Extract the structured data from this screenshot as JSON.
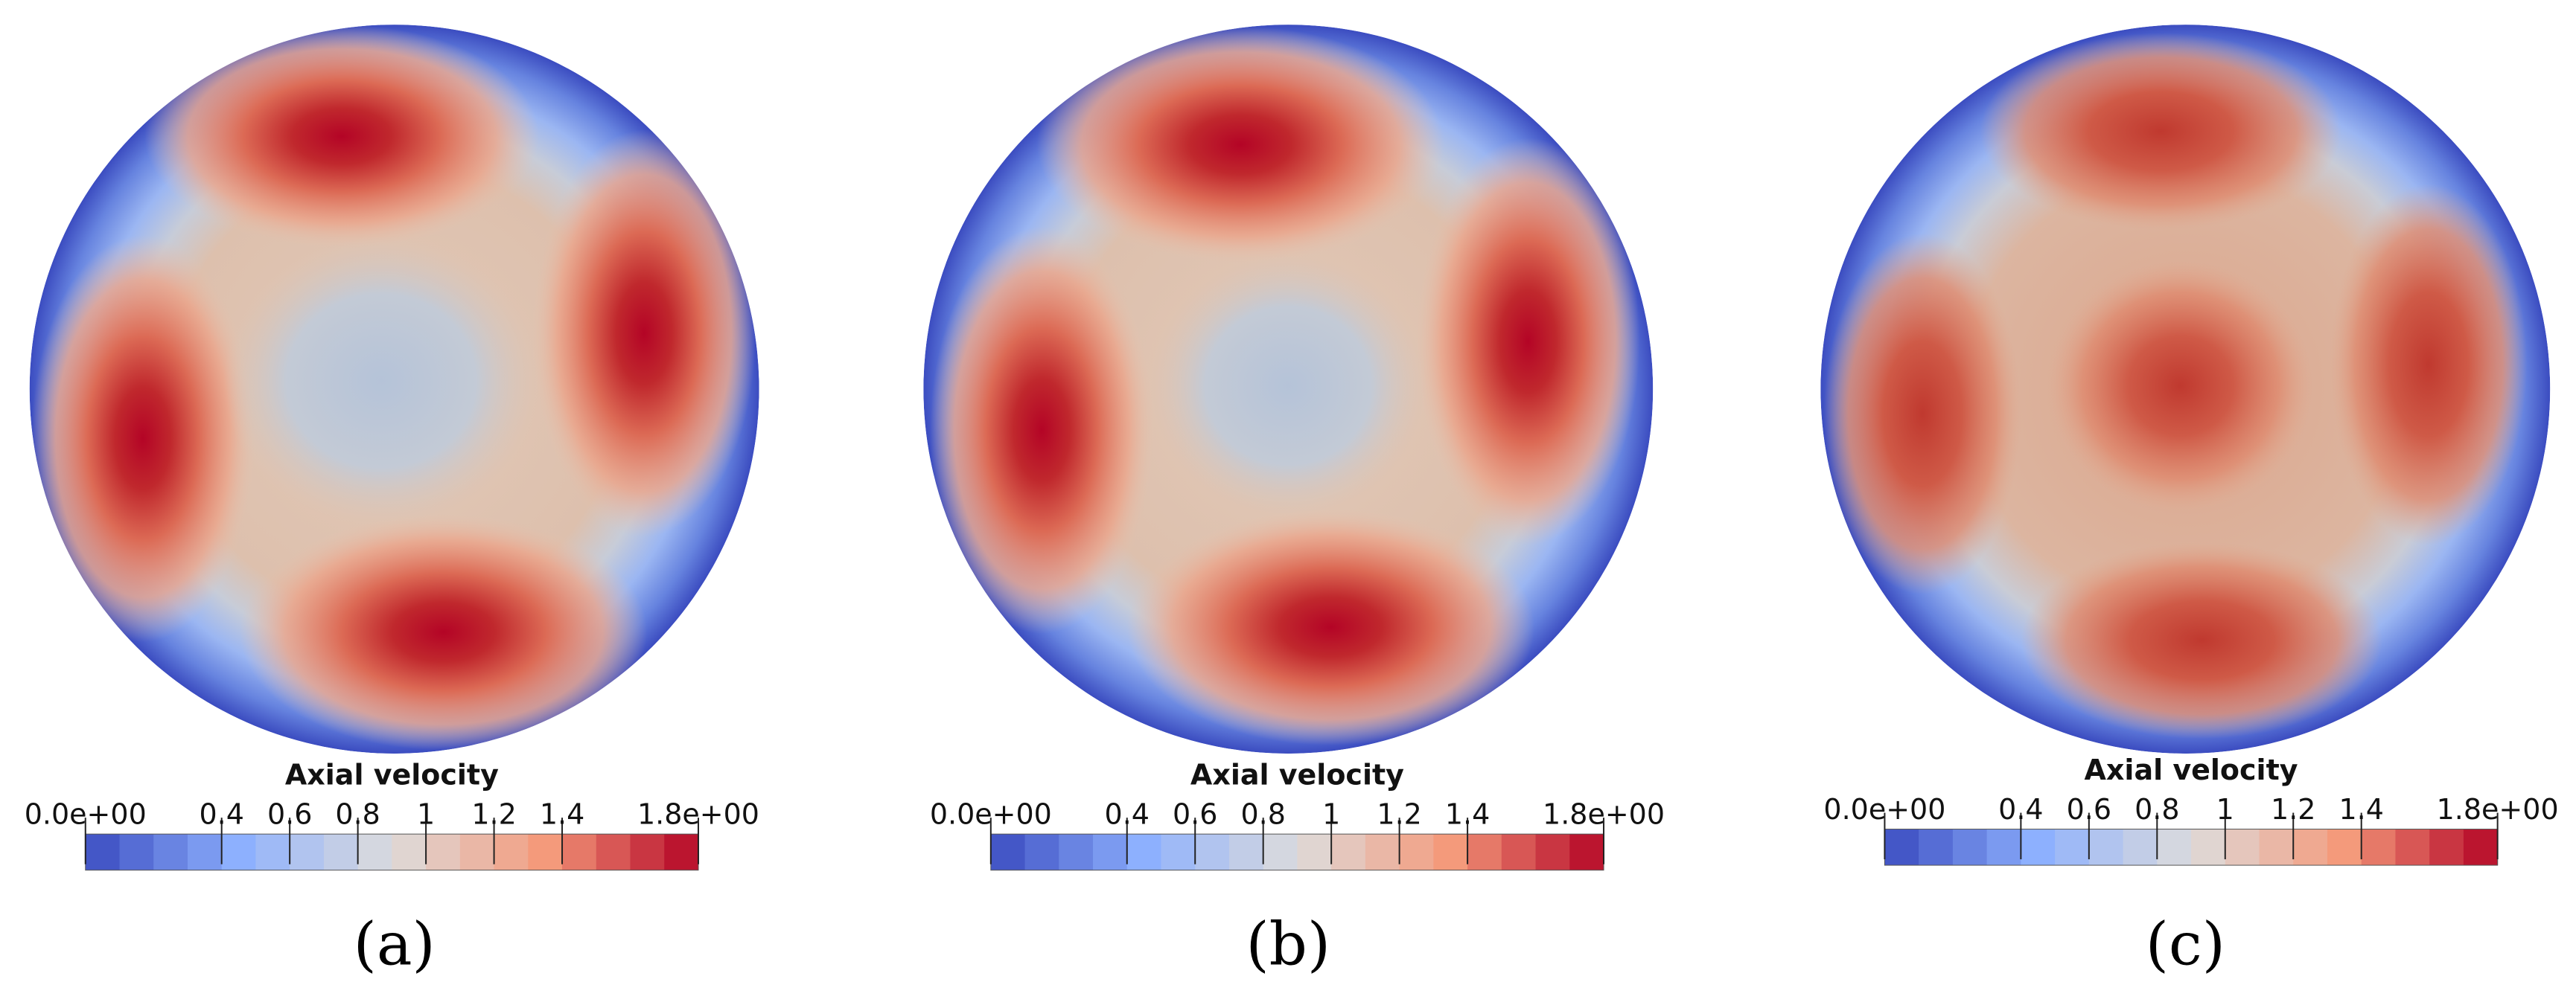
{
  "panels": [
    {
      "label": "(a)",
      "colorbar": {
        "title": "Axial velocity",
        "range": [
          0,
          1.8
        ],
        "ticks": [
          {
            "value": 0,
            "label": "0.0e+00"
          },
          0.4,
          0.6,
          0.8,
          1,
          1.2,
          1.4,
          {
            "value": 1.8,
            "label": "1.8e+00"
          }
        ]
      }
    },
    {
      "label": "(b)",
      "colorbar": {
        "title": "Axial velocity",
        "range": [
          0,
          1.8
        ],
        "ticks": [
          {
            "value": 0,
            "label": "0.0e+00"
          },
          0.4,
          0.6,
          0.8,
          1,
          1.2,
          1.4,
          {
            "value": 1.8,
            "label": "1.8e+00"
          }
        ]
      }
    },
    {
      "label": "(c)",
      "colorbar": {
        "title": "Axial velocity",
        "range": [
          0,
          1.8
        ],
        "ticks": [
          {
            "value": 0,
            "label": "0.0e+00"
          },
          0.4,
          0.6,
          0.8,
          1,
          1.2,
          1.4,
          {
            "value": 1.8,
            "label": "1.8e+00"
          }
        ]
      }
    }
  ]
}
